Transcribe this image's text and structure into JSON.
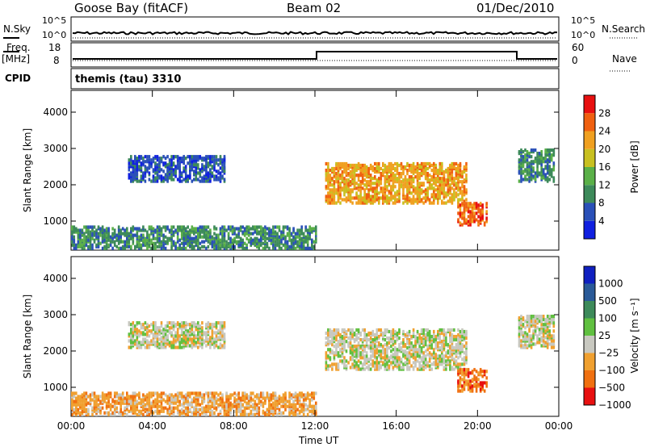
{
  "header": {
    "station": "Goose Bay (fitACF)",
    "beam": "Beam 02",
    "date": "01/Dec/2010"
  },
  "status_panels": {
    "nsky_label": "N.Sky",
    "nsky_ticks": [
      "10^5",
      "10^0"
    ],
    "nsearch_label": "N.Search",
    "nsearch_ticks": [
      "10^5",
      "10^0"
    ],
    "freq_label": "Freq.",
    "freq_unit": "[MHz]",
    "freq_ticks": [
      "18",
      "8"
    ],
    "nave_label": "Nave",
    "nave_ticks": [
      "60",
      "0"
    ],
    "cpid_label": "CPID",
    "cpid_value": "themis (tau) 3310"
  },
  "chart_data": [
    {
      "type": "heatmap",
      "name": "power",
      "ylabel": "Slant Range [km]",
      "y_ticks": [
        1000,
        2000,
        3000,
        4000
      ],
      "ylim": [
        200,
        4600
      ],
      "x_ticks": [
        "00:00",
        "04:00",
        "08:00",
        "12:00",
        "16:00",
        "20:00",
        "00:00"
      ],
      "xlim_hours": [
        0,
        24
      ],
      "colorbar": {
        "label": "Power [dB]",
        "ticks": [
          "4",
          "8",
          "12",
          "16",
          "20",
          "24",
          "28"
        ],
        "colors": [
          "#1020e0",
          "#2a50b8",
          "#3d8a5a",
          "#5ab048",
          "#c8c020",
          "#f0a020",
          "#f06010",
          "#e81010"
        ]
      },
      "regions": [
        {
          "t0": 0.0,
          "t1": 12.0,
          "r0": 250,
          "r1": 850,
          "level": 2
        },
        {
          "t0": 2.8,
          "t1": 7.5,
          "r0": 2100,
          "r1": 2800,
          "level": 1
        },
        {
          "t0": 12.5,
          "t1": 19.5,
          "r0": 1500,
          "r1": 2600,
          "level": 5
        },
        {
          "t0": 19.0,
          "t1": 20.5,
          "r0": 900,
          "r1": 1500,
          "level": 6
        },
        {
          "t0": 22.0,
          "t1": 23.8,
          "r0": 2100,
          "r1": 3000,
          "level": 2
        }
      ]
    },
    {
      "type": "heatmap",
      "name": "velocity",
      "ylabel": "Slant Range [km]",
      "y_ticks": [
        1000,
        2000,
        3000,
        4000
      ],
      "ylim": [
        200,
        4600
      ],
      "x_ticks": [
        "00:00",
        "04:00",
        "08:00",
        "12:00",
        "16:00",
        "20:00",
        "00:00"
      ],
      "xlabel": "Time UT",
      "xlim_hours": [
        0,
        24
      ],
      "colorbar": {
        "label": "Velocity [m s⁻¹]",
        "ticks": [
          "1000",
          "500",
          "100",
          "25",
          "−25",
          "−100",
          "−500",
          "−1000"
        ],
        "colors": [
          "#1020c0",
          "#2a5a98",
          "#3d8a5a",
          "#60c040",
          "#c8c8c0",
          "#f0a030",
          "#f07010",
          "#e81010"
        ]
      },
      "regions": [
        {
          "t0": 0.0,
          "t1": 12.0,
          "r0": 250,
          "r1": 850,
          "level": 5
        },
        {
          "t0": 2.8,
          "t1": 7.5,
          "r0": 2100,
          "r1": 2800,
          "level": 4
        },
        {
          "t0": 12.5,
          "t1": 19.5,
          "r0": 1500,
          "r1": 2600,
          "level": 4
        },
        {
          "t0": 19.0,
          "t1": 20.5,
          "r0": 900,
          "r1": 1500,
          "level": 6
        },
        {
          "t0": 22.0,
          "t1": 23.8,
          "r0": 2100,
          "r1": 3000,
          "level": 4
        }
      ]
    }
  ]
}
